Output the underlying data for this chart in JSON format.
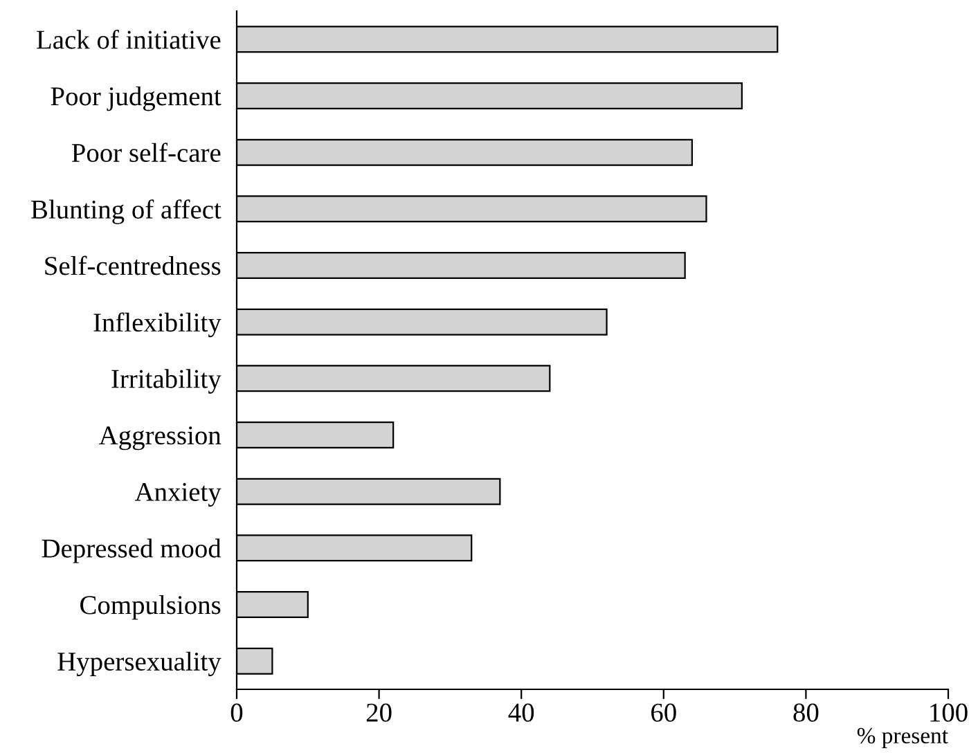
{
  "chart_data": {
    "type": "bar",
    "orientation": "horizontal",
    "categories": [
      "Lack of initiative",
      "Poor judgement",
      "Poor self-care",
      "Blunting of affect",
      "Self-centredness",
      "Inflexibility",
      "Irritability",
      "Aggression",
      "Anxiety",
      "Depressed mood",
      "Compulsions",
      "Hypersexuality"
    ],
    "values": [
      76,
      71,
      64,
      66,
      63,
      52,
      44,
      22,
      37,
      33,
      10,
      5
    ],
    "color": "#d3d3d3",
    "xlabel": "% present",
    "xlim": [
      0,
      100
    ],
    "xticks": [
      0,
      20,
      40,
      60,
      80,
      100
    ],
    "grid": false,
    "legend": false
  }
}
